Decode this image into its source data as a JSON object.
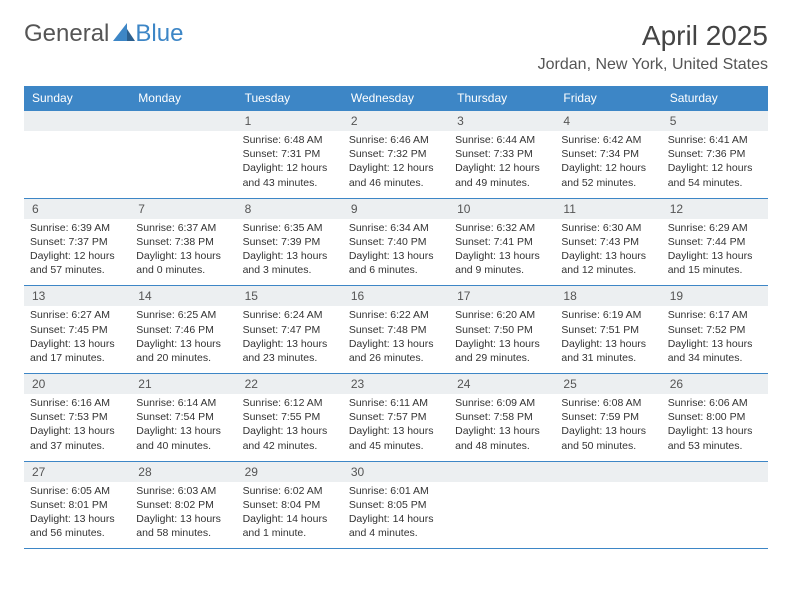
{
  "brand": {
    "part1": "General",
    "part2": "Blue"
  },
  "title": "April 2025",
  "location": "Jordan, New York, United States",
  "colors": {
    "header_bg": "#3d86c6",
    "header_text": "#ffffff",
    "daynum_bg": "#eceff1",
    "border": "#3d86c6",
    "text": "#333333",
    "title_color": "#444444"
  },
  "typography": {
    "title_fontsize": 28,
    "location_fontsize": 16,
    "dayheader_fontsize": 12,
    "daynum_fontsize": 12,
    "cell_fontsize": 10.5
  },
  "day_names": [
    "Sunday",
    "Monday",
    "Tuesday",
    "Wednesday",
    "Thursday",
    "Friday",
    "Saturday"
  ],
  "layout": {
    "weeks": 5,
    "cols": 7,
    "first_day_col": 2
  },
  "days": [
    {
      "n": 1,
      "sunrise": "6:48 AM",
      "sunset": "7:31 PM",
      "daylight": "12 hours and 43 minutes."
    },
    {
      "n": 2,
      "sunrise": "6:46 AM",
      "sunset": "7:32 PM",
      "daylight": "12 hours and 46 minutes."
    },
    {
      "n": 3,
      "sunrise": "6:44 AM",
      "sunset": "7:33 PM",
      "daylight": "12 hours and 49 minutes."
    },
    {
      "n": 4,
      "sunrise": "6:42 AM",
      "sunset": "7:34 PM",
      "daylight": "12 hours and 52 minutes."
    },
    {
      "n": 5,
      "sunrise": "6:41 AM",
      "sunset": "7:36 PM",
      "daylight": "12 hours and 54 minutes."
    },
    {
      "n": 6,
      "sunrise": "6:39 AM",
      "sunset": "7:37 PM",
      "daylight": "12 hours and 57 minutes."
    },
    {
      "n": 7,
      "sunrise": "6:37 AM",
      "sunset": "7:38 PM",
      "daylight": "13 hours and 0 minutes."
    },
    {
      "n": 8,
      "sunrise": "6:35 AM",
      "sunset": "7:39 PM",
      "daylight": "13 hours and 3 minutes."
    },
    {
      "n": 9,
      "sunrise": "6:34 AM",
      "sunset": "7:40 PM",
      "daylight": "13 hours and 6 minutes."
    },
    {
      "n": 10,
      "sunrise": "6:32 AM",
      "sunset": "7:41 PM",
      "daylight": "13 hours and 9 minutes."
    },
    {
      "n": 11,
      "sunrise": "6:30 AM",
      "sunset": "7:43 PM",
      "daylight": "13 hours and 12 minutes."
    },
    {
      "n": 12,
      "sunrise": "6:29 AM",
      "sunset": "7:44 PM",
      "daylight": "13 hours and 15 minutes."
    },
    {
      "n": 13,
      "sunrise": "6:27 AM",
      "sunset": "7:45 PM",
      "daylight": "13 hours and 17 minutes."
    },
    {
      "n": 14,
      "sunrise": "6:25 AM",
      "sunset": "7:46 PM",
      "daylight": "13 hours and 20 minutes."
    },
    {
      "n": 15,
      "sunrise": "6:24 AM",
      "sunset": "7:47 PM",
      "daylight": "13 hours and 23 minutes."
    },
    {
      "n": 16,
      "sunrise": "6:22 AM",
      "sunset": "7:48 PM",
      "daylight": "13 hours and 26 minutes."
    },
    {
      "n": 17,
      "sunrise": "6:20 AM",
      "sunset": "7:50 PM",
      "daylight": "13 hours and 29 minutes."
    },
    {
      "n": 18,
      "sunrise": "6:19 AM",
      "sunset": "7:51 PM",
      "daylight": "13 hours and 31 minutes."
    },
    {
      "n": 19,
      "sunrise": "6:17 AM",
      "sunset": "7:52 PM",
      "daylight": "13 hours and 34 minutes."
    },
    {
      "n": 20,
      "sunrise": "6:16 AM",
      "sunset": "7:53 PM",
      "daylight": "13 hours and 37 minutes."
    },
    {
      "n": 21,
      "sunrise": "6:14 AM",
      "sunset": "7:54 PM",
      "daylight": "13 hours and 40 minutes."
    },
    {
      "n": 22,
      "sunrise": "6:12 AM",
      "sunset": "7:55 PM",
      "daylight": "13 hours and 42 minutes."
    },
    {
      "n": 23,
      "sunrise": "6:11 AM",
      "sunset": "7:57 PM",
      "daylight": "13 hours and 45 minutes."
    },
    {
      "n": 24,
      "sunrise": "6:09 AM",
      "sunset": "7:58 PM",
      "daylight": "13 hours and 48 minutes."
    },
    {
      "n": 25,
      "sunrise": "6:08 AM",
      "sunset": "7:59 PM",
      "daylight": "13 hours and 50 minutes."
    },
    {
      "n": 26,
      "sunrise": "6:06 AM",
      "sunset": "8:00 PM",
      "daylight": "13 hours and 53 minutes."
    },
    {
      "n": 27,
      "sunrise": "6:05 AM",
      "sunset": "8:01 PM",
      "daylight": "13 hours and 56 minutes."
    },
    {
      "n": 28,
      "sunrise": "6:03 AM",
      "sunset": "8:02 PM",
      "daylight": "13 hours and 58 minutes."
    },
    {
      "n": 29,
      "sunrise": "6:02 AM",
      "sunset": "8:04 PM",
      "daylight": "14 hours and 1 minute."
    },
    {
      "n": 30,
      "sunrise": "6:01 AM",
      "sunset": "8:05 PM",
      "daylight": "14 hours and 4 minutes."
    }
  ],
  "labels": {
    "sunrise": "Sunrise:",
    "sunset": "Sunset:",
    "daylight": "Daylight:"
  }
}
